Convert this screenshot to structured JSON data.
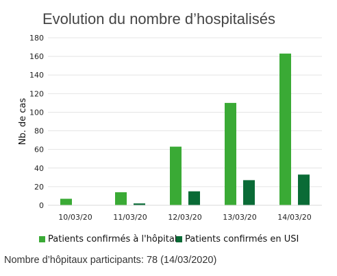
{
  "chart_data": {
    "type": "bar",
    "title": "Evolution du nombre d’hospitalisés",
    "xlabel": "",
    "ylabel": "Nb. de cas",
    "categories": [
      "10/03/20",
      "11/03/20",
      "12/03/20",
      "13/03/20",
      "14/03/20"
    ],
    "series": [
      {
        "name": "Patients confirmés à l'hôpital",
        "color": "#3aaa35",
        "values": [
          7,
          14,
          63,
          110,
          163
        ]
      },
      {
        "name": "Patients confirmés en USI",
        "color": "#0a6b36",
        "values": [
          0,
          2,
          15,
          27,
          33
        ]
      }
    ],
    "ylim": [
      0,
      180
    ],
    "yticks": [
      0,
      20,
      40,
      60,
      80,
      100,
      120,
      140,
      160,
      180
    ],
    "grid": true,
    "legend": "bottom"
  },
  "footnote": "Nombre d’hôpitaux participants: 78 (14/03/2020)"
}
